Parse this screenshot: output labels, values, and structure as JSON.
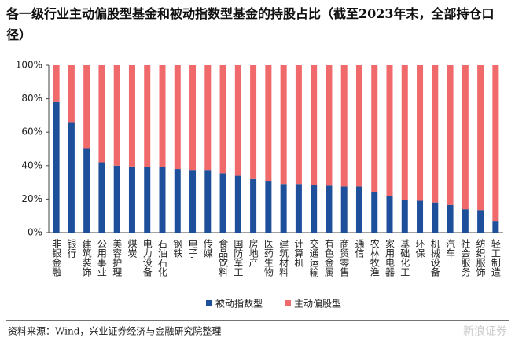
{
  "chart_data": {
    "type": "stacked_bar",
    "title": "各一级行业主动偏股型基金和被动指数型基金的持股占比（截至2023年末，全部持仓口径）",
    "categories": [
      "非银金融",
      "银行",
      "建筑装饰",
      "公用事业",
      "美容护理",
      "煤炭",
      "电力设备",
      "石油石化",
      "钢铁",
      "电子",
      "传媒",
      "食品饮料",
      "国防军工",
      "房地产",
      "医药生物",
      "建筑材料",
      "计算机",
      "交通运输",
      "有色金属",
      "商贸零售",
      "通信",
      "农林牧渔",
      "家用电器",
      "基础化工",
      "环保",
      "机械设备",
      "汽车",
      "社会服务",
      "纺织服饰",
      "轻工制造"
    ],
    "series": [
      {
        "name": "被动指数型",
        "color": "#1d4f9a",
        "values": [
          78,
          66,
          50,
          42,
          40,
          39.5,
          39,
          39,
          38,
          37,
          37,
          35.5,
          34,
          32,
          30.5,
          29,
          29,
          28.5,
          28,
          27.5,
          27.5,
          24,
          22,
          19.5,
          19,
          18,
          16.5,
          14,
          13.5,
          7
        ]
      },
      {
        "name": "主动偏股型",
        "color": "#f0696b",
        "values": [
          22,
          34,
          50,
          58,
          60,
          60.5,
          61,
          61,
          62,
          63,
          63,
          64.5,
          66,
          68,
          69.5,
          71,
          71,
          71.5,
          72,
          72.5,
          72.5,
          76,
          78,
          80.5,
          81,
          82,
          83.5,
          86,
          86.5,
          93
        ]
      }
    ],
    "ylim": [
      0,
      100
    ],
    "yticks": [
      {
        "value": 0,
        "label": "0%"
      },
      {
        "value": 20,
        "label": "20%"
      },
      {
        "value": 40,
        "label": "40%"
      },
      {
        "value": 60,
        "label": "60%"
      },
      {
        "value": 80,
        "label": "80%"
      },
      {
        "value": 100,
        "label": "100%"
      }
    ],
    "legend": "bottom",
    "source": "资料来源：Wind，兴业证券经济与金融研究院整理",
    "watermark": "新浪证券"
  }
}
